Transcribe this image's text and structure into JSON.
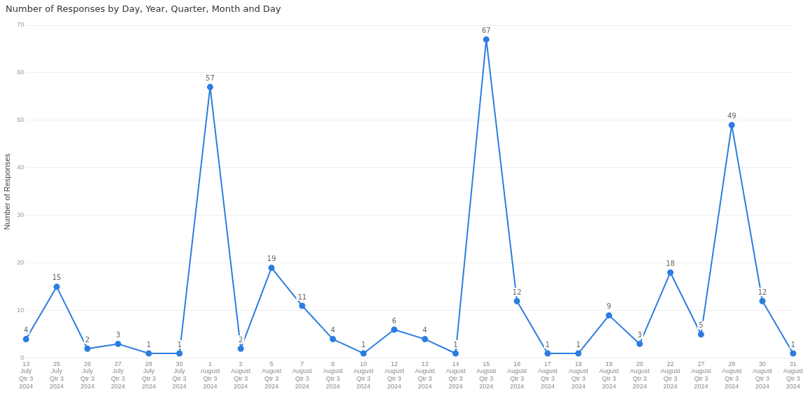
{
  "chart_data": {
    "type": "line",
    "title": "Number of Responses by Day, Year, Quarter, Month and Day",
    "ylabel": "Number of Responses",
    "categories": [
      "13\nJuly\nQtr 3\n2024",
      "25\nJuly\nQtr 3\n2024",
      "26\nJuly\nQtr 3\n2024",
      "27\nJuly\nQtr 3\n2024",
      "29\nJuly\nQtr 3\n2024",
      "30\nJuly\nQtr 3\n2024",
      "1\nAugust\nQtr 3\n2024",
      "2\nAugust\nQtr 3\n2024",
      "5\nAugust\nQtr 3\n2024",
      "7\nAugust\nQtr 3\n2024",
      "8\nAugust\nQtr 3\n2024",
      "10\nAugust\nQtr 3\n2024",
      "12\nAugust\nQtr 3\n2024",
      "13\nAugust\nQtr 3\n2024",
      "14\nAugust\nQtr 3\n2024",
      "15\nAugust\nQtr 3\n2024",
      "16\nAugust\nQtr 3\n2024",
      "17\nAugust\nQtr 3\n2024",
      "18\nAugust\nQtr 3\n2024",
      "19\nAugust\nQtr 3\n2024",
      "20\nAugust\nQtr 3\n2024",
      "22\nAugust\nQtr 3\n2024",
      "27\nAugust\nQtr 3\n2024",
      "29\nAugust\nQtr 3\n2024",
      "30\nAugust\nQtr 3\n2024",
      "31\nAugust\nQtr 3\n2024"
    ],
    "values": [
      4,
      15,
      2,
      3,
      1,
      1,
      57,
      2,
      19,
      11,
      4,
      1,
      6,
      4,
      1,
      67,
      12,
      1,
      1,
      9,
      3,
      18,
      5,
      49,
      12,
      1
    ],
    "color": "#2b7de0",
    "ylim": [
      0,
      70
    ],
    "yticks": [
      0,
      10,
      20,
      30,
      40,
      50,
      60,
      70
    ],
    "grid": "y",
    "marker": "circle",
    "data_labels": true,
    "legend": false
  }
}
